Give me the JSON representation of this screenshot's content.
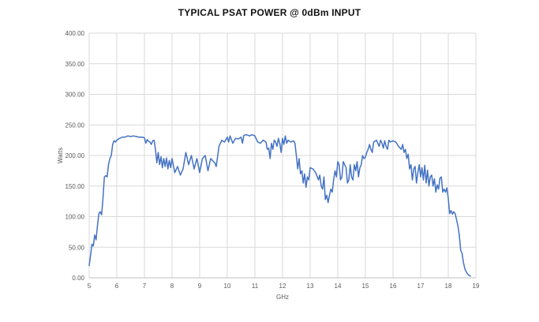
{
  "chart_data": {
    "type": "line",
    "title": "TYPICAL PSAT POWER @ 0dBm INPUT",
    "xlabel": "GHz",
    "ylabel": "Watts",
    "xlim": [
      5,
      19
    ],
    "ylim": [
      0,
      400
    ],
    "x_ticks": [
      "5",
      "6",
      "7",
      "8",
      "9",
      "10",
      "11",
      "12",
      "13",
      "14",
      "15",
      "16",
      "17",
      "18",
      "19"
    ],
    "y_ticks": [
      "0.00",
      "50.00",
      "100.00",
      "150.00",
      "200.00",
      "250.00",
      "300.00",
      "350.00",
      "400.00"
    ],
    "grid": "vertical-and-horizontal",
    "legend": "none",
    "series": [
      {
        "color": "#4472c4",
        "points": [
          [
            5.0,
            20
          ],
          [
            5.06,
            40
          ],
          [
            5.1,
            55
          ],
          [
            5.15,
            52
          ],
          [
            5.2,
            70
          ],
          [
            5.25,
            62
          ],
          [
            5.3,
            85
          ],
          [
            5.35,
            105
          ],
          [
            5.4,
            108
          ],
          [
            5.45,
            103
          ],
          [
            5.5,
            130
          ],
          [
            5.55,
            165
          ],
          [
            5.6,
            167
          ],
          [
            5.65,
            165
          ],
          [
            5.7,
            185
          ],
          [
            5.75,
            195
          ],
          [
            5.8,
            200
          ],
          [
            5.85,
            218
          ],
          [
            5.9,
            224
          ],
          [
            5.95,
            222
          ],
          [
            6.0,
            225
          ],
          [
            6.1,
            228
          ],
          [
            6.2,
            230
          ],
          [
            6.3,
            230
          ],
          [
            6.4,
            232
          ],
          [
            6.5,
            231
          ],
          [
            6.6,
            232
          ],
          [
            6.7,
            231
          ],
          [
            6.8,
            230
          ],
          [
            6.9,
            230
          ],
          [
            7.0,
            229
          ],
          [
            7.05,
            220
          ],
          [
            7.1,
            226
          ],
          [
            7.15,
            223
          ],
          [
            7.2,
            222
          ],
          [
            7.25,
            218
          ],
          [
            7.3,
            224
          ],
          [
            7.35,
            225
          ],
          [
            7.4,
            210
          ],
          [
            7.45,
            188
          ],
          [
            7.5,
            205
          ],
          [
            7.55,
            185
          ],
          [
            7.6,
            198
          ],
          [
            7.65,
            180
          ],
          [
            7.7,
            195
          ],
          [
            7.75,
            182
          ],
          [
            7.8,
            196
          ],
          [
            7.85,
            178
          ],
          [
            7.9,
            192
          ],
          [
            7.95,
            180
          ],
          [
            8.0,
            195
          ],
          [
            8.1,
            172
          ],
          [
            8.2,
            182
          ],
          [
            8.3,
            168
          ],
          [
            8.4,
            178
          ],
          [
            8.5,
            205
          ],
          [
            8.6,
            185
          ],
          [
            8.7,
            200
          ],
          [
            8.8,
            178
          ],
          [
            8.9,
            195
          ],
          [
            9.0,
            172
          ],
          [
            9.1,
            195
          ],
          [
            9.2,
            200
          ],
          [
            9.3,
            175
          ],
          [
            9.4,
            195
          ],
          [
            9.5,
            190
          ],
          [
            9.55,
            188
          ],
          [
            9.6,
            182
          ],
          [
            9.7,
            215
          ],
          [
            9.8,
            225
          ],
          [
            9.9,
            222
          ],
          [
            10.0,
            230
          ],
          [
            10.05,
            222
          ],
          [
            10.1,
            232
          ],
          [
            10.2,
            220
          ],
          [
            10.3,
            228
          ],
          [
            10.4,
            227
          ],
          [
            10.5,
            230
          ],
          [
            10.55,
            220
          ],
          [
            10.6,
            233
          ],
          [
            10.7,
            234
          ],
          [
            10.8,
            232
          ],
          [
            10.9,
            234
          ],
          [
            11.0,
            232
          ],
          [
            11.1,
            222
          ],
          [
            11.2,
            220
          ],
          [
            11.3,
            225
          ],
          [
            11.4,
            222
          ],
          [
            11.45,
            210
          ],
          [
            11.5,
            212
          ],
          [
            11.55,
            195
          ],
          [
            11.6,
            220
          ],
          [
            11.65,
            210
          ],
          [
            11.7,
            225
          ],
          [
            11.75,
            222
          ],
          [
            11.8,
            215
          ],
          [
            11.85,
            228
          ],
          [
            11.9,
            220
          ],
          [
            11.95,
            205
          ],
          [
            12.0,
            228
          ],
          [
            12.05,
            218
          ],
          [
            12.1,
            232
          ],
          [
            12.15,
            220
          ],
          [
            12.2,
            225
          ],
          [
            12.3,
            222
          ],
          [
            12.4,
            224
          ],
          [
            12.45,
            220
          ],
          [
            12.5,
            200
          ],
          [
            12.55,
            178
          ],
          [
            12.6,
            195
          ],
          [
            12.65,
            170
          ],
          [
            12.7,
            175
          ],
          [
            12.75,
            155
          ],
          [
            12.8,
            170
          ],
          [
            12.85,
            148
          ],
          [
            12.9,
            165
          ],
          [
            12.95,
            160
          ],
          [
            13.0,
            180
          ],
          [
            13.1,
            178
          ],
          [
            13.2,
            172
          ],
          [
            13.3,
            160
          ],
          [
            13.35,
            168
          ],
          [
            13.4,
            150
          ],
          [
            13.45,
            145
          ],
          [
            13.5,
            165
          ],
          [
            13.55,
            128
          ],
          [
            13.6,
            135
          ],
          [
            13.65,
            123
          ],
          [
            13.7,
            135
          ],
          [
            13.75,
            145
          ],
          [
            13.8,
            140
          ],
          [
            13.85,
            160
          ],
          [
            13.9,
            175
          ],
          [
            13.95,
            165
          ],
          [
            14.0,
            190
          ],
          [
            14.05,
            185
          ],
          [
            14.1,
            160
          ],
          [
            14.15,
            165
          ],
          [
            14.2,
            190
          ],
          [
            14.3,
            180
          ],
          [
            14.35,
            155
          ],
          [
            14.4,
            160
          ],
          [
            14.45,
            185
          ],
          [
            14.5,
            165
          ],
          [
            14.55,
            160
          ],
          [
            14.6,
            185
          ],
          [
            14.65,
            175
          ],
          [
            14.7,
            190
          ],
          [
            14.75,
            165
          ],
          [
            14.8,
            180
          ],
          [
            14.85,
            185
          ],
          [
            14.9,
            200
          ],
          [
            14.95,
            195
          ],
          [
            15.0,
            197
          ],
          [
            15.05,
            205
          ],
          [
            15.1,
            210
          ],
          [
            15.15,
            218
          ],
          [
            15.2,
            210
          ],
          [
            15.25,
            205
          ],
          [
            15.3,
            222
          ],
          [
            15.4,
            225
          ],
          [
            15.5,
            215
          ],
          [
            15.55,
            225
          ],
          [
            15.6,
            220
          ],
          [
            15.65,
            212
          ],
          [
            15.7,
            224
          ],
          [
            15.75,
            215
          ],
          [
            15.8,
            210
          ],
          [
            15.85,
            225
          ],
          [
            15.9,
            222
          ],
          [
            16.0,
            224
          ],
          [
            16.1,
            222
          ],
          [
            16.2,
            215
          ],
          [
            16.3,
            210
          ],
          [
            16.35,
            218
          ],
          [
            16.4,
            205
          ],
          [
            16.45,
            210
          ],
          [
            16.5,
            195
          ],
          [
            16.55,
            202
          ],
          [
            16.6,
            178
          ],
          [
            16.65,
            185
          ],
          [
            16.7,
            160
          ],
          [
            16.75,
            178
          ],
          [
            16.8,
            182
          ],
          [
            16.85,
            155
          ],
          [
            16.9,
            172
          ],
          [
            16.95,
            185
          ],
          [
            17.0,
            165
          ],
          [
            17.05,
            180
          ],
          [
            17.1,
            160
          ],
          [
            17.15,
            184
          ],
          [
            17.2,
            155
          ],
          [
            17.25,
            176
          ],
          [
            17.3,
            150
          ],
          [
            17.35,
            165
          ],
          [
            17.4,
            168
          ],
          [
            17.45,
            150
          ],
          [
            17.5,
            162
          ],
          [
            17.55,
            140
          ],
          [
            17.6,
            152
          ],
          [
            17.65,
            145
          ],
          [
            17.7,
            163
          ],
          [
            17.75,
            165
          ],
          [
            17.8,
            140
          ],
          [
            17.85,
            145
          ],
          [
            17.9,
            140
          ],
          [
            17.95,
            147
          ],
          [
            18.0,
            130
          ],
          [
            18.05,
            105
          ],
          [
            18.1,
            110
          ],
          [
            18.15,
            104
          ],
          [
            18.2,
            108
          ],
          [
            18.25,
            105
          ],
          [
            18.3,
            95
          ],
          [
            18.35,
            85
          ],
          [
            18.4,
            70
          ],
          [
            18.45,
            45
          ],
          [
            18.5,
            40
          ],
          [
            18.55,
            25
          ],
          [
            18.6,
            15
          ],
          [
            18.65,
            10
          ],
          [
            18.7,
            6
          ],
          [
            18.75,
            4
          ],
          [
            18.8,
            3
          ]
        ]
      }
    ]
  }
}
